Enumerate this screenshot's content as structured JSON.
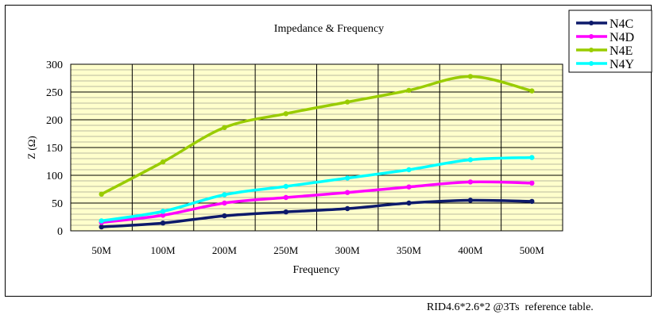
{
  "chart_data": {
    "type": "line",
    "title": "Impedance & Frequency",
    "xlabel": "Frequency",
    "ylabel": "Z (Ω)",
    "categories": [
      "50M",
      "100M",
      "200M",
      "250M",
      "300M",
      "350M",
      "400M",
      "500M"
    ],
    "ylim": [
      0,
      300
    ],
    "yticks": [
      0,
      50,
      100,
      150,
      200,
      250,
      300
    ],
    "grid": true,
    "legend_position": "top-right",
    "series": [
      {
        "name": "N4C",
        "color": "#0d1a6b",
        "values": [
          7,
          14,
          27,
          34,
          40,
          50,
          55,
          53
        ]
      },
      {
        "name": "N4D",
        "color": "#ff00ff",
        "values": [
          15,
          28,
          50,
          60,
          69,
          79,
          88,
          86
        ]
      },
      {
        "name": "N4E",
        "color": "#99cc00",
        "values": [
          66,
          124,
          186,
          211,
          232,
          253,
          278,
          252
        ]
      },
      {
        "name": "N4Y",
        "color": "#00ffff",
        "values": [
          18,
          35,
          65,
          80,
          95,
          110,
          128,
          132
        ]
      }
    ]
  },
  "caption": "RID4.6*2.6*2 @3Ts  reference table.",
  "colors": {
    "plot_background": "#ffffcc",
    "grid": "#000000"
  }
}
